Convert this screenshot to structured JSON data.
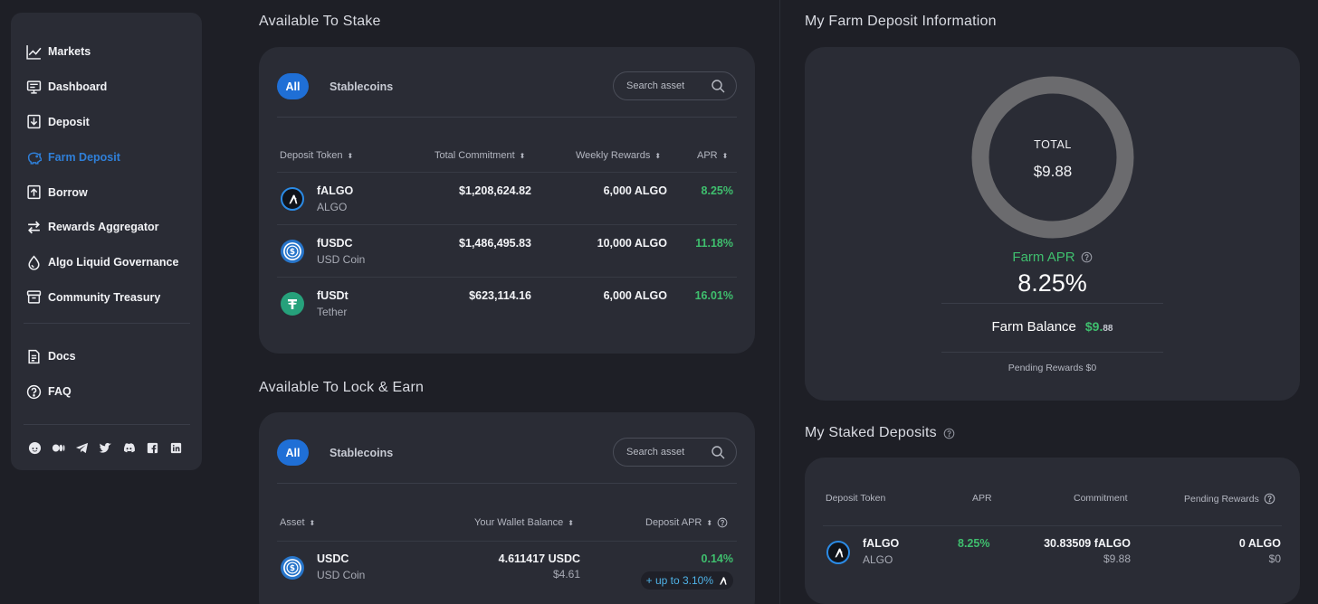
{
  "sidebar": {
    "items": [
      {
        "label": "Markets",
        "icon": "chart-line-icon"
      },
      {
        "label": "Dashboard",
        "icon": "monitor-icon"
      },
      {
        "label": "Deposit",
        "icon": "deposit-icon"
      },
      {
        "label": "Farm Deposit",
        "icon": "piggy-bank-icon"
      },
      {
        "label": "Borrow",
        "icon": "borrow-icon"
      },
      {
        "label": "Rewards Aggregator",
        "icon": "arrows-exchange-icon"
      },
      {
        "label": "Algo Liquid Governance",
        "icon": "drop-icon"
      },
      {
        "label": "Community Treasury",
        "icon": "treasury-icon"
      }
    ],
    "secondary": [
      {
        "label": "Docs",
        "icon": "document-icon"
      },
      {
        "label": "FAQ",
        "icon": "question-icon"
      }
    ],
    "social": [
      "reddit-icon",
      "medium-icon",
      "telegram-icon",
      "twitter-icon",
      "discord-icon",
      "facebook-icon",
      "linkedin-icon"
    ]
  },
  "stake": {
    "title": "Available To Stake",
    "tab_all": "All",
    "tab_stable": "Stablecoins",
    "search_placeholder": "Search asset",
    "headers": [
      "Deposit Token",
      "Total Commitment",
      "Weekly Rewards",
      "APR"
    ],
    "rows": [
      {
        "name": "fALGO",
        "sub": "ALGO",
        "commitment": "$1,208,624.82",
        "rewards": "6,000 ALGO",
        "apr": "8.25%"
      },
      {
        "name": "fUSDC",
        "sub": "USD Coin",
        "commitment": "$1,486,495.83",
        "rewards": "10,000 ALGO",
        "apr": "11.18%"
      },
      {
        "name": "fUSDt",
        "sub": "Tether",
        "commitment": "$623,114.16",
        "rewards": "6,000 ALGO",
        "apr": "16.01%"
      }
    ]
  },
  "lock": {
    "title": "Available To Lock & Earn",
    "tab_all": "All",
    "tab_stable": "Stablecoins",
    "search_placeholder": "Search asset",
    "headers": [
      "Asset",
      "Your Wallet Balance",
      "Deposit APR"
    ],
    "rows": [
      {
        "name": "USDC",
        "sub": "USD Coin",
        "balance": "4.611417 USDC",
        "balance_usd": "$4.61",
        "apr": "0.14%",
        "boost": "+ up to 3.10%"
      }
    ]
  },
  "farm_info": {
    "title": "My Farm Deposit Information",
    "total_label": "TOTAL",
    "total_value": "$9.88",
    "apr_label": "Farm APR",
    "apr_value": "8.25%",
    "balance_label": "Farm Balance",
    "balance_main": "$9.",
    "balance_cents": "88",
    "pending": "Pending Rewards $0"
  },
  "staked": {
    "title": "My Staked Deposits",
    "headers": [
      "Deposit Token",
      "APR",
      "Commitment",
      "Pending Rewards"
    ],
    "rows": [
      {
        "name": "fALGO",
        "sub": "ALGO",
        "apr": "8.25%",
        "commitment": "30.83509 fALGO",
        "commitment_usd": "$9.88",
        "pending": "0 ALGO",
        "pending_usd": "$0"
      }
    ]
  },
  "colors": {
    "accent": "#1f6fd6",
    "active_nav": "#2f7fd8",
    "positive": "#3fbf6e",
    "card": "#2a2c35",
    "background": "#1e1f26"
  }
}
